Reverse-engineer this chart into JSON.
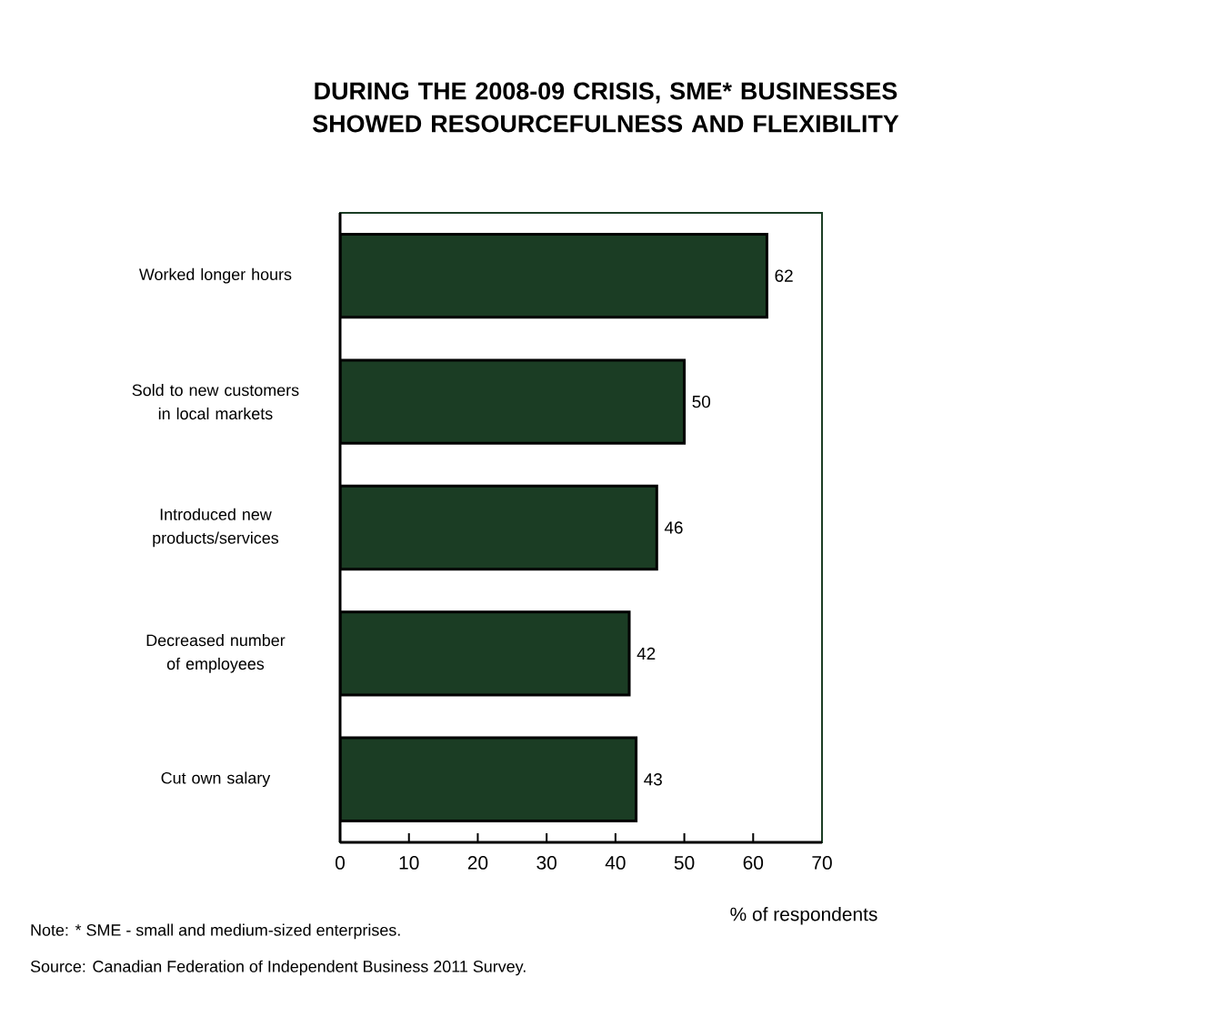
{
  "chart_data": {
    "type": "bar",
    "orientation": "horizontal",
    "title": "DURING THE 2008-09 CRISIS, SME* BUSINESSES SHOWED RESOURCEFULNESS AND FLEXIBILITY",
    "categories": [
      "Worked longer hours",
      "Sold to new customers in local markets",
      "Introduced new products/services",
      "Decreased number of employees",
      "Cut own salary"
    ],
    "values": [
      62,
      50,
      46,
      42,
      43
    ],
    "color": "#1b3d24",
    "data_labels": true,
    "xlim": [
      0,
      70
    ],
    "xticks": [
      0,
      10,
      20,
      30,
      40,
      50,
      60,
      70
    ],
    "xlabel": "% of respondents",
    "annotations": [
      "Note: * SME - small and medium-sized enterprises.",
      "Source: Canadian Federation of Independent Business 2011 Survey."
    ]
  }
}
